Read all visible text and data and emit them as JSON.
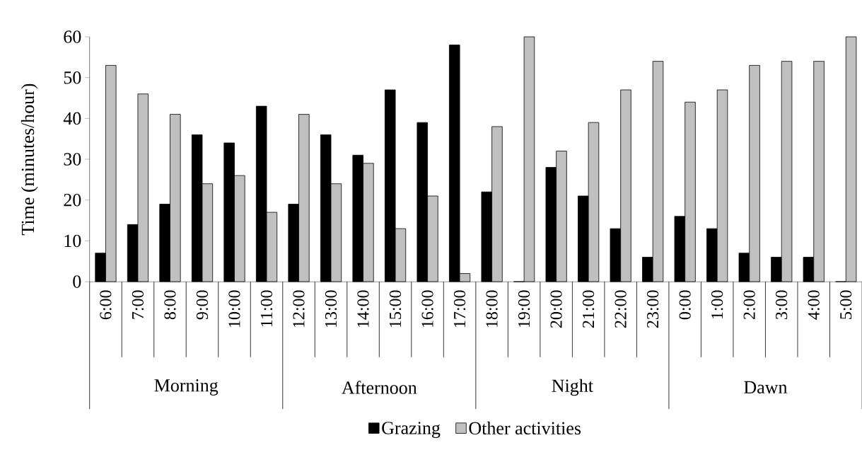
{
  "chart_data": {
    "type": "bar",
    "ylabel": "Time (minutes/hour)",
    "categories": [
      "6:00",
      "7:00",
      "8:00",
      "9:00",
      "10:00",
      "11:00",
      "12:00",
      "13:00",
      "14:00",
      "15:00",
      "16:00",
      "17:00",
      "18:00",
      "19:00",
      "20:00",
      "21:00",
      "22:00",
      "23:00",
      "0:00",
      "1:00",
      "2:00",
      "3:00",
      "4:00",
      "5:00"
    ],
    "series": [
      {
        "name": "Grazing",
        "color": "#000000",
        "values": [
          7,
          14,
          19,
          36,
          34,
          43,
          19,
          36,
          31,
          47,
          39,
          58,
          22,
          0,
          28,
          21,
          13,
          6,
          16,
          13,
          7,
          6,
          6,
          0
        ]
      },
      {
        "name": "Other activities",
        "color": "#c0c0c0",
        "values": [
          53,
          46,
          41,
          24,
          26,
          17,
          41,
          24,
          29,
          13,
          21,
          2,
          38,
          60,
          32,
          39,
          47,
          54,
          44,
          47,
          53,
          54,
          54,
          60
        ]
      }
    ],
    "annotations": [
      "Morning",
      "Afternoon",
      "Night",
      "Dawn"
    ],
    "ylim": [
      0,
      60
    ],
    "yticks": [
      0,
      10,
      20,
      30,
      40,
      50,
      60
    ],
    "grid": false,
    "legend": "bottom"
  }
}
